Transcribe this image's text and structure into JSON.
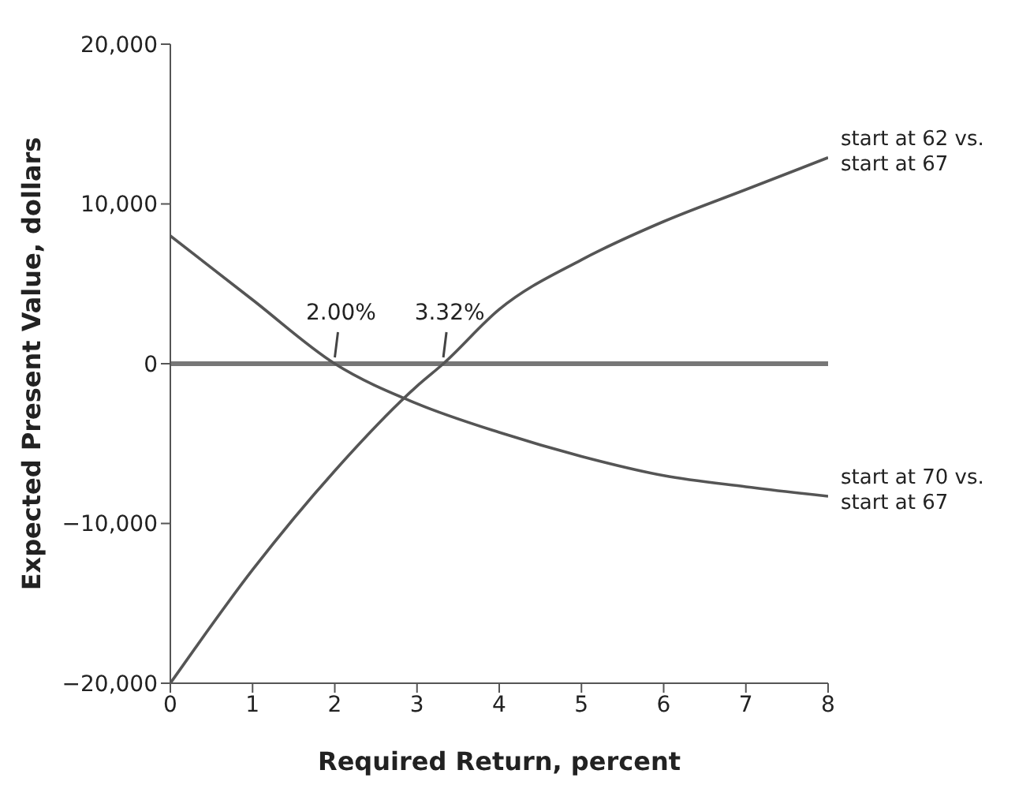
{
  "chart_data": {
    "type": "line",
    "xlabel": "Required Return, percent",
    "ylabel": "Expected Present Value, dollars",
    "xlim": [
      0,
      8
    ],
    "xticks": [
      0,
      1,
      2,
      3,
      4,
      5,
      6,
      7,
      8
    ],
    "ylim": [
      -20000,
      20000
    ],
    "yticks": [
      {
        "value": -20000,
        "label": "−20,000"
      },
      {
        "value": -10000,
        "label": "−10,000"
      },
      0,
      {
        "value": 10000,
        "label": "10,000"
      },
      {
        "value": 20000,
        "label": "20,000"
      }
    ],
    "marker": "none",
    "line_style": "solid",
    "series": [
      {
        "name": "start at 62 vs. start at 67",
        "color": "#555555",
        "x": [
          0,
          1,
          2,
          3,
          3.32,
          4,
          5,
          6,
          7,
          8
        ],
        "values": [
          -20000,
          -12900,
          -6700,
          -1400,
          0,
          3400,
          6500,
          8900,
          10900,
          12900
        ]
      },
      {
        "name": "start at 70 vs. start at 67",
        "color": "#555555",
        "x": [
          0,
          1,
          2,
          3,
          4,
          5,
          6,
          7,
          8
        ],
        "values": [
          8000,
          4000,
          0,
          -2500,
          -4300,
          -5800,
          -7000,
          -7700,
          -8300
        ]
      }
    ],
    "ref_lines": [
      {
        "axis": "y",
        "value": 0,
        "color": "#777777"
      }
    ],
    "annotations": [
      {
        "text": "2.00%",
        "x": 2,
        "y": 0
      },
      {
        "text": "3.32%",
        "x": 3.32,
        "y": 0
      }
    ]
  }
}
